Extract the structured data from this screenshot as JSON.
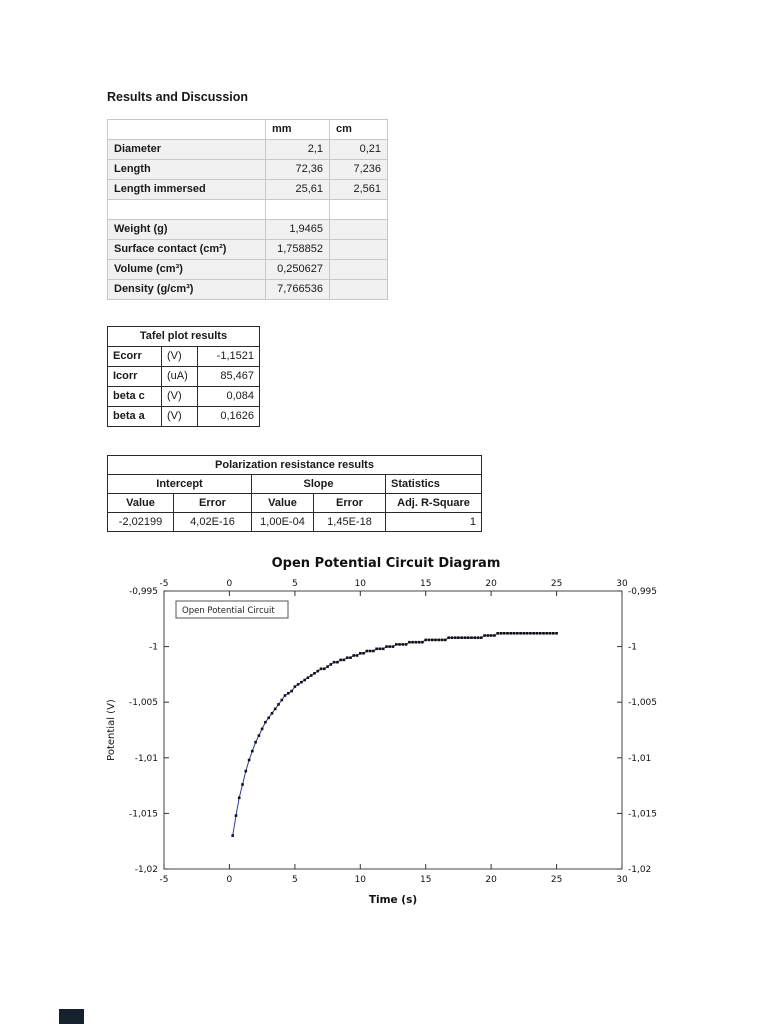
{
  "page": {
    "heading": "Results and Discussion"
  },
  "colors": {
    "viewer_fragment": "#15222e"
  },
  "measurements_table": {
    "header": [
      "",
      "mm",
      "cm"
    ],
    "rows": [
      {
        "label": "Diameter",
        "mm": "2,1",
        "cm": "0,21"
      },
      {
        "label": "Length",
        "mm": "72,36",
        "cm": "7,236"
      },
      {
        "label": "Length immersed",
        "mm": "25,61",
        "cm": "2,561"
      },
      {
        "label": "",
        "mm": "",
        "cm": ""
      },
      {
        "label": "Weight (g)",
        "mm": "1,9465",
        "cm": ""
      },
      {
        "label": "Surface contact (cm²)",
        "mm": "1,758852",
        "cm": ""
      },
      {
        "label": "Volume (cm³)",
        "mm": "0,250627",
        "cm": ""
      },
      {
        "label": "Density (g/cm³)",
        "mm": "7,766536",
        "cm": ""
      }
    ]
  },
  "tafel_table": {
    "title": "Tafel plot results",
    "rows": [
      {
        "name": "Ecorr",
        "unit": "(V)",
        "value": "-1,1521"
      },
      {
        "name": "Icorr",
        "unit": "(uA)",
        "value": "85,467"
      },
      {
        "name": "beta c",
        "unit": "(V)",
        "value": "0,084"
      },
      {
        "name": "beta a",
        "unit": "(V)",
        "value": "0,1626"
      }
    ]
  },
  "polarization_table": {
    "title": "Polarization resistance results",
    "groups": [
      "Intercept",
      "Slope",
      "Statistics"
    ],
    "columns": [
      "Value",
      "Error",
      "Value",
      "Error",
      "Adj. R-Square"
    ],
    "values": [
      "-2,02199",
      "4,02E-16",
      "1,00E-04",
      "1,45E-18",
      "1"
    ]
  },
  "chart_data": {
    "type": "line",
    "title": "Open Potential Circuit Diagram",
    "xlabel": "Time (s)",
    "ylabel": "Potential (V)",
    "legend": [
      "Open Potential Circuit"
    ],
    "legend_position": "top-left-inside",
    "grid": false,
    "xlim": [
      -5,
      30
    ],
    "ylim": [
      -1.02,
      -0.995
    ],
    "x_ticks": [
      -5,
      0,
      5,
      10,
      15,
      20,
      25,
      30
    ],
    "x_tick_labels": [
      "-5",
      "0",
      "5",
      "10",
      "15",
      "20",
      "25",
      "30"
    ],
    "y_ticks": [
      -0.995,
      -1,
      -1.005,
      -1.01,
      -1.015,
      -1.02
    ],
    "y_tick_labels": [
      "-0,995",
      "-1",
      "-1,005",
      "-1,01",
      "-1,015",
      "-1,02"
    ],
    "marker": "square",
    "marker_color": "#111111",
    "line_color": "#2b3a9f",
    "series": [
      {
        "name": "Open Potential Circuit",
        "points": [
          [
            0.25,
            -1.017
          ],
          [
            0.5,
            -1.0152
          ],
          [
            0.75,
            -1.0136
          ],
          [
            1,
            -1.0124
          ],
          [
            1.25,
            -1.0112
          ],
          [
            1.5,
            -1.0102
          ],
          [
            1.75,
            -1.0094
          ],
          [
            2,
            -1.0086
          ],
          [
            2.25,
            -1.008
          ],
          [
            2.5,
            -1.0074
          ],
          [
            2.75,
            -1.0068
          ],
          [
            3,
            -1.0064
          ],
          [
            3.25,
            -1.006
          ],
          [
            3.5,
            -1.0056
          ],
          [
            3.75,
            -1.0052
          ],
          [
            4,
            -1.0048
          ],
          [
            4.25,
            -1.0044
          ],
          [
            4.5,
            -1.0042
          ],
          [
            4.75,
            -1.004
          ],
          [
            5,
            -1.0036
          ],
          [
            5.25,
            -1.0034
          ],
          [
            5.5,
            -1.0032
          ],
          [
            5.75,
            -1.003
          ],
          [
            6,
            -1.0028
          ],
          [
            6.25,
            -1.0026
          ],
          [
            6.5,
            -1.0024
          ],
          [
            6.75,
            -1.0022
          ],
          [
            7,
            -1.002
          ],
          [
            7.25,
            -1.002
          ],
          [
            7.5,
            -1.0018
          ],
          [
            7.75,
            -1.0016
          ],
          [
            8,
            -1.0014
          ],
          [
            8.25,
            -1.0014
          ],
          [
            8.5,
            -1.0012
          ],
          [
            8.75,
            -1.0012
          ],
          [
            9,
            -1.001
          ],
          [
            9.25,
            -1.001
          ],
          [
            9.5,
            -1.0008
          ],
          [
            9.75,
            -1.0008
          ],
          [
            10,
            -1.0006
          ],
          [
            10.25,
            -1.0006
          ],
          [
            10.5,
            -1.0004
          ],
          [
            10.75,
            -1.0004
          ],
          [
            11,
            -1.0004
          ],
          [
            11.25,
            -1.0002
          ],
          [
            11.5,
            -1.0002
          ],
          [
            11.75,
            -1.0002
          ],
          [
            12,
            -1
          ],
          [
            12.25,
            -1
          ],
          [
            12.5,
            -1
          ],
          [
            12.75,
            -0.9998
          ],
          [
            13,
            -0.9998
          ],
          [
            13.25,
            -0.9998
          ],
          [
            13.5,
            -0.9998
          ],
          [
            13.75,
            -0.9996
          ],
          [
            14,
            -0.9996
          ],
          [
            14.25,
            -0.9996
          ],
          [
            14.5,
            -0.9996
          ],
          [
            14.75,
            -0.9996
          ],
          [
            15,
            -0.9994
          ],
          [
            15.25,
            -0.9994
          ],
          [
            15.5,
            -0.9994
          ],
          [
            15.75,
            -0.9994
          ],
          [
            16,
            -0.9994
          ],
          [
            16.25,
            -0.9994
          ],
          [
            16.5,
            -0.9994
          ],
          [
            16.75,
            -0.9992
          ],
          [
            17,
            -0.9992
          ],
          [
            17.25,
            -0.9992
          ],
          [
            17.5,
            -0.9992
          ],
          [
            17.75,
            -0.9992
          ],
          [
            18,
            -0.9992
          ],
          [
            18.25,
            -0.9992
          ],
          [
            18.5,
            -0.9992
          ],
          [
            18.75,
            -0.9992
          ],
          [
            19,
            -0.9992
          ],
          [
            19.25,
            -0.9992
          ],
          [
            19.5,
            -0.999
          ],
          [
            19.75,
            -0.999
          ],
          [
            20,
            -0.999
          ],
          [
            20.25,
            -0.999
          ],
          [
            20.5,
            -0.9988
          ],
          [
            20.75,
            -0.9988
          ],
          [
            21,
            -0.9988
          ],
          [
            21.25,
            -0.9988
          ],
          [
            21.5,
            -0.9988
          ],
          [
            21.75,
            -0.9988
          ],
          [
            22,
            -0.9988
          ],
          [
            22.25,
            -0.9988
          ],
          [
            22.5,
            -0.9988
          ],
          [
            22.75,
            -0.9988
          ],
          [
            23,
            -0.9988
          ],
          [
            23.25,
            -0.9988
          ],
          [
            23.5,
            -0.9988
          ],
          [
            23.75,
            -0.9988
          ],
          [
            24,
            -0.9988
          ],
          [
            24.25,
            -0.9988
          ],
          [
            24.5,
            -0.9988
          ],
          [
            24.75,
            -0.9988
          ],
          [
            25,
            -0.9988
          ]
        ]
      }
    ]
  }
}
